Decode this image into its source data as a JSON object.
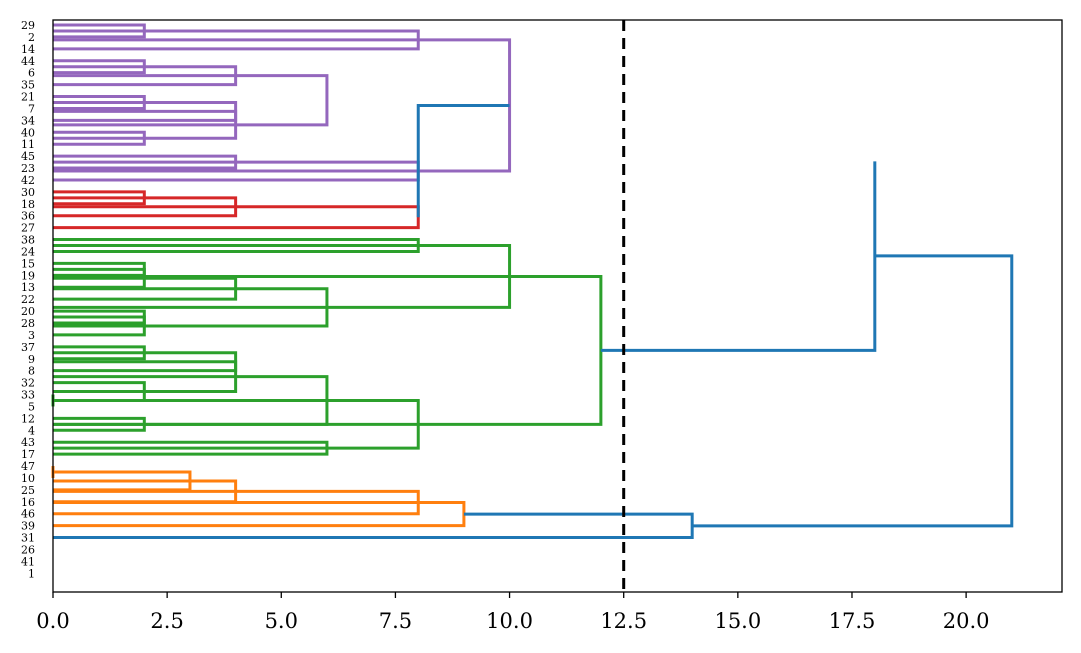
{
  "chart_data": {
    "type": "dendrogram",
    "orientation": "horizontal",
    "xlim": [
      0,
      22.1
    ],
    "xticks": [
      0,
      2.5,
      5,
      7.5,
      10,
      12.5,
      15,
      17.5,
      20
    ],
    "xtick_labels": [
      "0.0",
      "2.5",
      "5.0",
      "7.5",
      "10.0",
      "12.5",
      "15.0",
      "17.5",
      "20.0"
    ],
    "leaf_order": [
      "29",
      "2",
      "14",
      "44",
      "6",
      "35",
      "21",
      "7",
      "34",
      "40",
      "11",
      "45",
      "23",
      "42",
      "30",
      "18",
      "36",
      "27",
      "38",
      "24",
      "15",
      "19",
      "13",
      "22",
      "20",
      "28",
      "3",
      "37",
      "9",
      "8",
      "32",
      "33",
      "5",
      "12",
      "4",
      "43",
      "17",
      "47",
      "10",
      "25",
      "16",
      "46",
      "39",
      "31",
      "26",
      "41",
      "1"
    ],
    "cut_threshold": 12.5,
    "cluster_colors": {
      "purple": "#9467bd",
      "red": "#d62728",
      "green": "#2ca02c",
      "orange": "#ff7f0e",
      "blue": "#1f77b4"
    },
    "merges": [
      {
        "height": 2,
        "pos": [
          0,
          1
        ],
        "color": "purple"
      },
      {
        "height": 8,
        "pos": [
          0.5,
          2
        ],
        "color": "purple"
      },
      {
        "height": 2,
        "pos": [
          3,
          4
        ],
        "color": "purple"
      },
      {
        "height": 4,
        "pos": [
          3.5,
          5
        ],
        "color": "purple"
      },
      {
        "height": 2,
        "pos": [
          6,
          7
        ],
        "color": "purple"
      },
      {
        "height": 2,
        "pos": [
          9,
          10
        ],
        "color": "purple"
      },
      {
        "height": 4,
        "pos": [
          6.5,
          8
        ],
        "color": "purple"
      },
      {
        "height": 4,
        "pos": [
          7.25,
          9.5
        ],
        "color": "purple"
      },
      {
        "height": 6,
        "pos": [
          4.25,
          8.375
        ],
        "color": "purple"
      },
      {
        "height": 4,
        "pos": [
          11,
          12
        ],
        "color": "purple"
      },
      {
        "height": 8,
        "pos": [
          11.5,
          13
        ],
        "color": "purple"
      },
      {
        "height": 10,
        "pos": [
          1.25,
          12.25
        ],
        "color": "purple"
      },
      {
        "height": 2,
        "pos": [
          14,
          15
        ],
        "color": "red"
      },
      {
        "height": 4,
        "pos": [
          14.5,
          16
        ],
        "color": "red"
      },
      {
        "height": 8,
        "pos": [
          15.25,
          17
        ],
        "color": "red"
      },
      {
        "height": 8,
        "pos": [
          18,
          19
        ],
        "color": "green"
      },
      {
        "height": 2,
        "pos": [
          20,
          21
        ],
        "color": "green"
      },
      {
        "height": 2,
        "pos": [
          20.5,
          22
        ],
        "color": "green"
      },
      {
        "height": 4,
        "pos": [
          21.25,
          23
        ],
        "color": "green"
      },
      {
        "height": 2,
        "pos": [
          24,
          25
        ],
        "color": "green"
      },
      {
        "height": 2,
        "pos": [
          24.5,
          26
        ],
        "color": "green"
      },
      {
        "height": 6,
        "pos": [
          22.125,
          25.25
        ],
        "color": "green"
      },
      {
        "height": 10,
        "pos": [
          18.5,
          23.6875
        ],
        "color": "green"
      },
      {
        "height": 2,
        "pos": [
          27,
          28
        ],
        "color": "green"
      },
      {
        "height": 4,
        "pos": [
          27.5,
          29
        ],
        "color": "green"
      },
      {
        "height": 0,
        "pos": [
          31,
          32
        ],
        "color": "green"
      },
      {
        "height": 2,
        "pos": [
          30,
          31.5
        ],
        "color": "green"
      },
      {
        "height": 4,
        "pos": [
          28.25,
          30.75
        ],
        "color": "green"
      },
      {
        "height": 2,
        "pos": [
          33,
          34
        ],
        "color": "green"
      },
      {
        "height": 6,
        "pos": [
          29.5,
          33.5
        ],
        "color": "green"
      },
      {
        "height": 6,
        "pos": [
          35,
          36
        ],
        "color": "green"
      },
      {
        "height": 8,
        "pos": [
          31.5,
          35.5
        ],
        "color": "green"
      },
      {
        "height": 12,
        "pos": [
          21.09375,
          33.5
        ],
        "color": "green"
      },
      {
        "height": 0,
        "pos": [
          37,
          38
        ],
        "color": "orange"
      },
      {
        "height": 3,
        "pos": [
          37.5,
          39
        ],
        "color": "orange"
      },
      {
        "height": 4,
        "pos": [
          38.25,
          40
        ],
        "color": "orange"
      },
      {
        "height": 8,
        "pos": [
          39.125,
          41
        ],
        "color": "orange"
      },
      {
        "height": 9,
        "pos": [
          40.0625,
          42
        ],
        "color": "orange"
      },
      {
        "height": 8,
        "pos": [
          16.125,
          6.75
        ],
        "color": "blue",
        "x_left": [
          8,
          10
        ]
      },
      {
        "height": 18,
        "pos": [
          11.4375,
          27.296875
        ],
        "color": "blue",
        "x_left": [
          18,
          12
        ]
      },
      {
        "height": 14,
        "pos": [
          41.03125,
          43
        ],
        "color": "blue",
        "x_left": [
          9,
          0
        ]
      },
      {
        "height": 21,
        "pos": [
          19.3671875,
          42.015625
        ],
        "color": "blue",
        "x_left": [
          18,
          14
        ]
      }
    ]
  }
}
